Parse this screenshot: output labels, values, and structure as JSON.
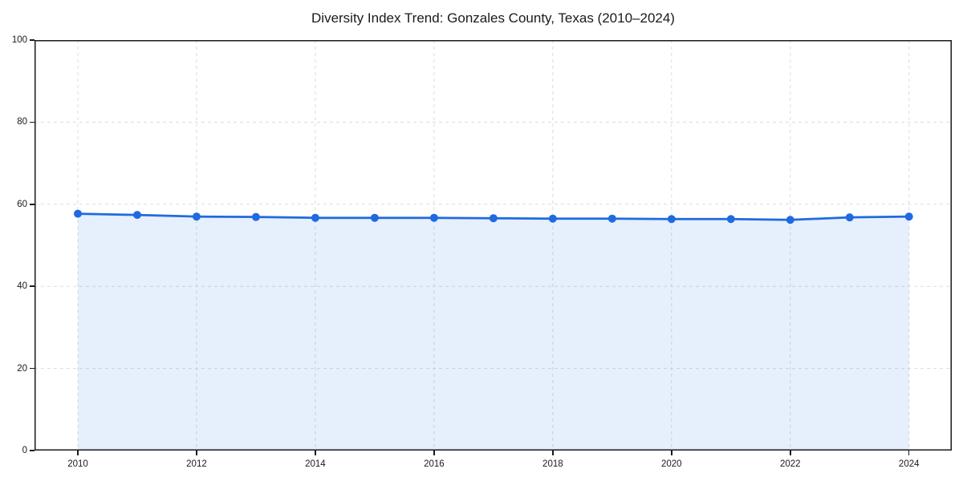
{
  "chart_data": {
    "type": "area",
    "title": "Diversity Index Trend: Gonzales County, Texas (2010–2024)",
    "x": [
      2010,
      2011,
      2012,
      2013,
      2014,
      2015,
      2016,
      2017,
      2018,
      2019,
      2020,
      2021,
      2022,
      2023,
      2024
    ],
    "series": [
      {
        "name": "Diversity Index",
        "values": [
          57.7,
          57.4,
          57.0,
          56.9,
          56.7,
          56.7,
          56.7,
          56.6,
          56.5,
          56.5,
          56.4,
          56.4,
          56.2,
          56.8,
          57.0
        ]
      }
    ],
    "xlabel": "",
    "ylabel": "",
    "xlim": [
      2009.27,
      2024.72
    ],
    "ylim": [
      0,
      100
    ],
    "xticks": [
      2010,
      2012,
      2014,
      2016,
      2018,
      2020,
      2022,
      2024
    ],
    "yticks": [
      0,
      20,
      40,
      60,
      80,
      100
    ],
    "grid": true,
    "legend_position": "none",
    "line_color": "#1f6ae0",
    "marker_color": "#1f6ae0",
    "fill_color": "rgba(31,106,224,0.11)",
    "grid_color": "#dcdcdc",
    "axis_color": "#1a1a1a",
    "tick_label_color": "#1a1a1a"
  }
}
